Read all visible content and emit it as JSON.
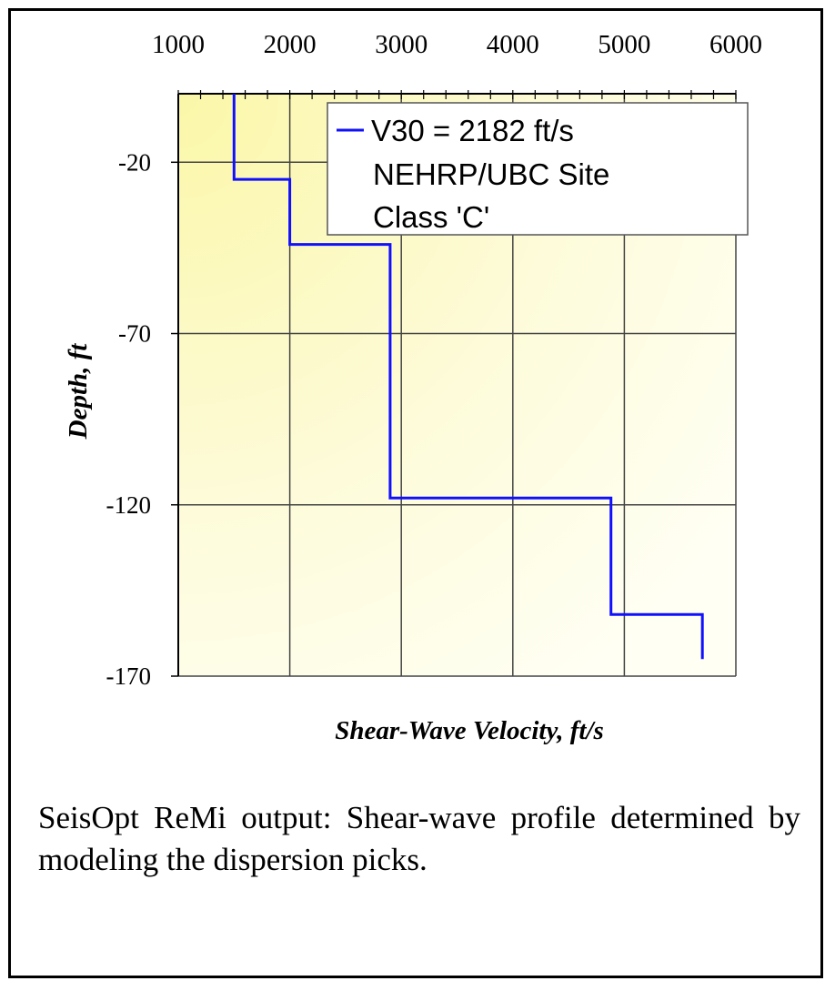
{
  "chart_data": {
    "type": "line",
    "xlabel": "Shear-Wave Velocity, ft/s",
    "ylabel": "Depth, ft",
    "xlim": [
      1000,
      6000
    ],
    "ylim": [
      -170,
      0
    ],
    "x_ticks": [
      1000,
      2000,
      3000,
      4000,
      5000,
      6000
    ],
    "y_ticks": [
      -20,
      -70,
      -120,
      -170
    ],
    "grid": true,
    "legend_position": "top-right",
    "legend_lines": [
      "V30 = 2182 ft/s",
      "NEHRP/UBC Site",
      "Class 'C'"
    ],
    "series": [
      {
        "color": "#1010ff",
        "points": [
          {
            "x": 1500,
            "y": 0
          },
          {
            "x": 1500,
            "y": -25
          },
          {
            "x": 2000,
            "y": -25
          },
          {
            "x": 2000,
            "y": -44
          },
          {
            "x": 2900,
            "y": -44
          },
          {
            "x": 2900,
            "y": -118
          },
          {
            "x": 4880,
            "y": -118
          },
          {
            "x": 4880,
            "y": -152
          },
          {
            "x": 5700,
            "y": -152
          },
          {
            "x": 5700,
            "y": -165
          }
        ]
      }
    ]
  },
  "caption": "SeisOpt ReMi output: Shear-wave profile determined by modeling the dispersion picks."
}
